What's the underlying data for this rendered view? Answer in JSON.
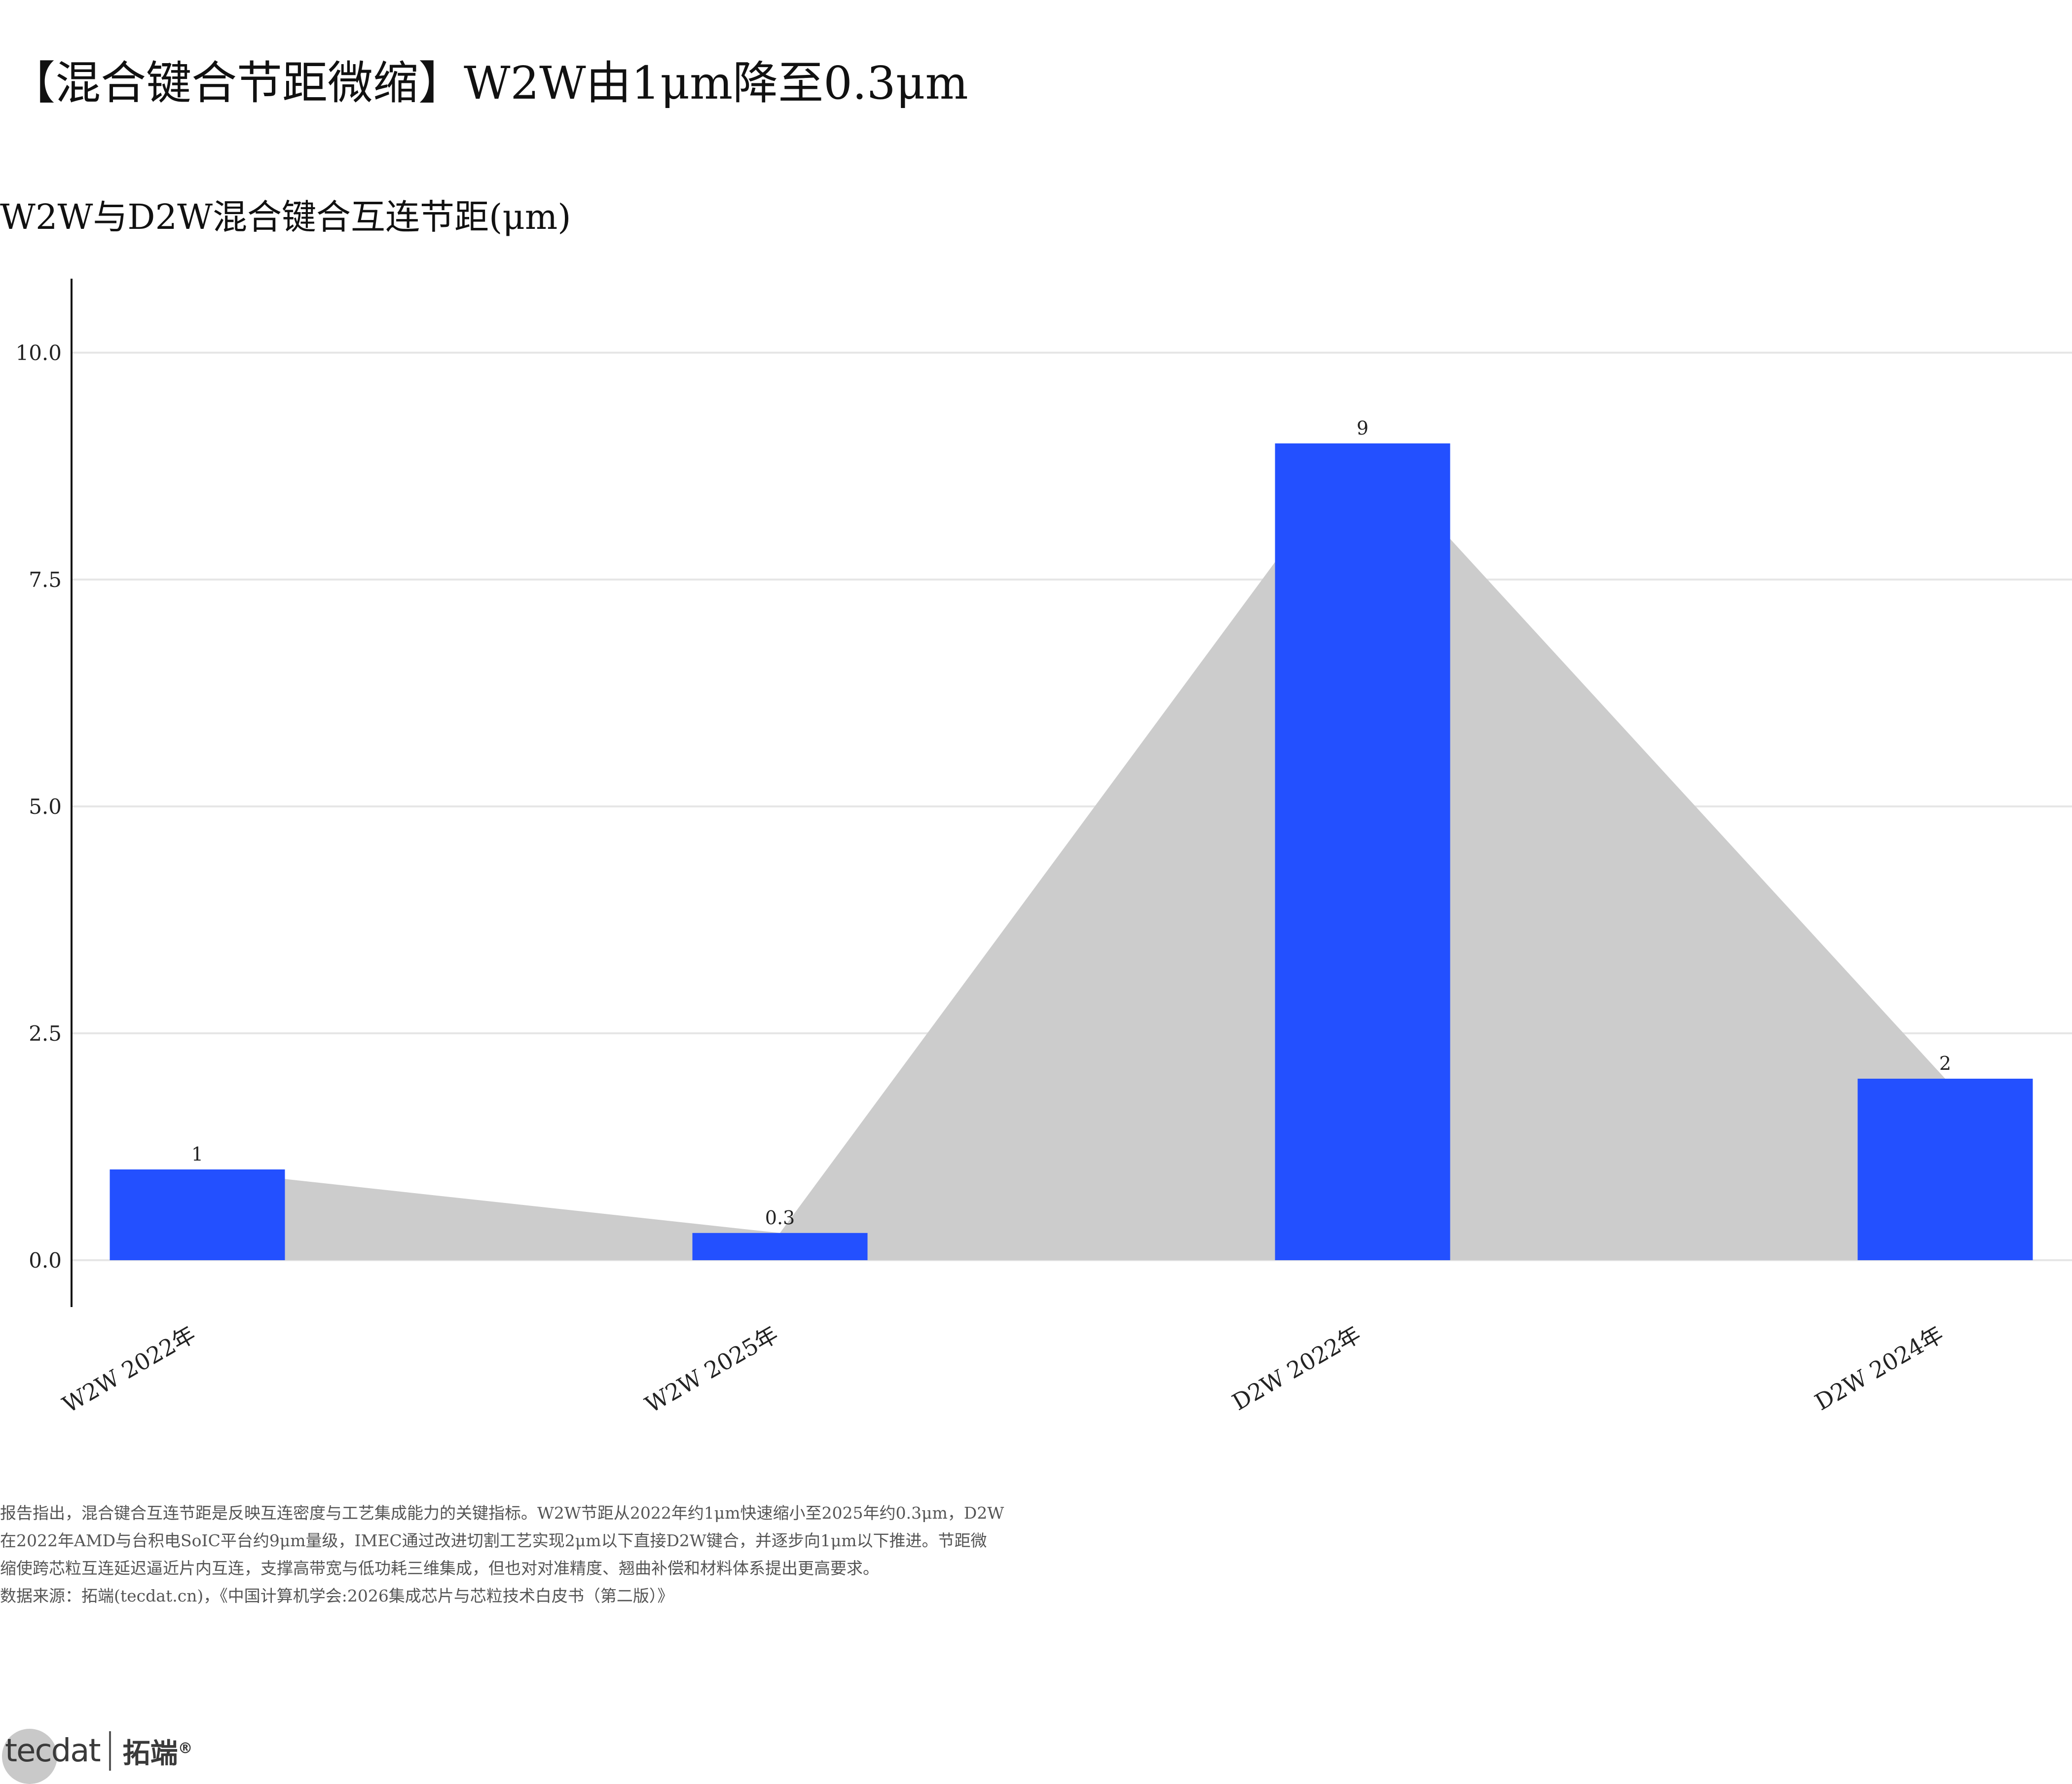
{
  "title": "【混合键合节距微缩】W2W由1μm降至0.3μm",
  "subtitle": "W2W与D2W混合键合互连节距(μm)",
  "chart_data": {
    "type": "bar",
    "categories": [
      "W2W 2022年",
      "W2W 2025年",
      "D2W 2022年",
      "D2W 2024年"
    ],
    "values": [
      1,
      0.3,
      9,
      2
    ],
    "value_labels": [
      "1",
      "0.3",
      "9",
      "2"
    ],
    "ylim": [
      -0.5,
      10.8
    ],
    "yticks": [
      0,
      2.5,
      5,
      7.5,
      10
    ],
    "ytick_labels": [
      "0.0",
      "2.5",
      "5.0",
      "7.5",
      "10.0"
    ],
    "xlabel": "",
    "ylabel": "",
    "grid": "horizontal",
    "bar_color": "#2350ff",
    "area_color": "#cccccc",
    "gridline_color": "#e6e6e6"
  },
  "note": {
    "lines": [
      "报告指出，混合键合互连节距是反映互连密度与工艺集成能力的关键指标。W2W节距从2022年约1μm快速缩小至2025年约0.3μm，D2W",
      "在2022年AMD与台积电SoIC平台约9μm量级，IMEC通过改进切割工艺实现2μm以下直接D2W键合，并逐步向1μm以下推进。节距微",
      "缩使跨芯粒互连延迟逼近片内互连，支撑高带宽与低功耗三维集成，但也对对准精度、翘曲补偿和材料体系提出更高要求。",
      "数据来源：拓端(tecdat.cn)，《中国计算机学会:2026集成芯片与芯粒技术白皮书（第二版）》"
    ]
  },
  "logo": {
    "mark": "tecdat",
    "name_cn": "拓端",
    "registered": "®"
  }
}
